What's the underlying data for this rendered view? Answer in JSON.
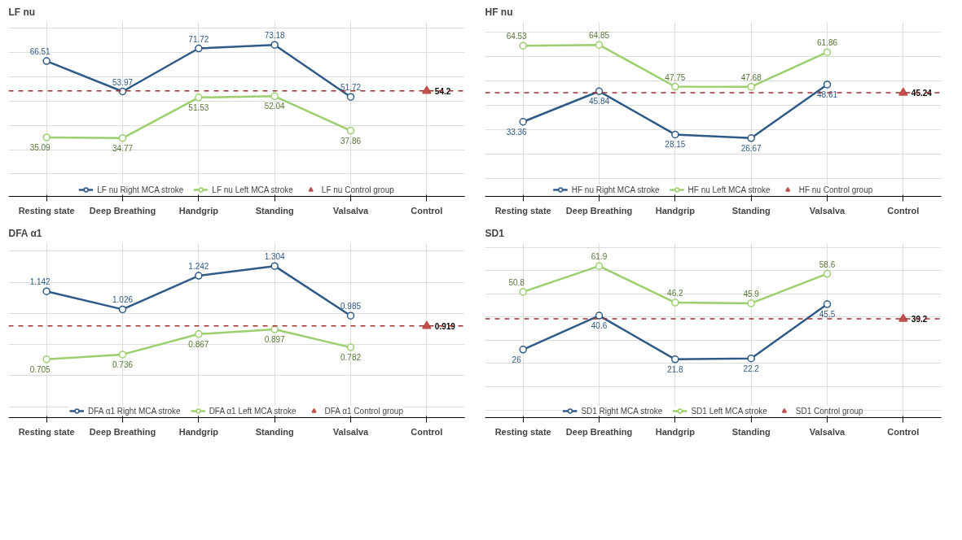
{
  "chart_data": [
    {
      "type": "line",
      "title": "LF nu",
      "categories": [
        "Resting state",
        "Deep Breathing",
        "Handgrip",
        "Standing",
        "Valsalva",
        "Control"
      ],
      "marker": "circle",
      "data_labels": true,
      "grid": true,
      "legend": "bottom",
      "tick_labels": "x",
      "series": [
        {
          "name": "LF nu Right MCA stroke",
          "color": "#2e5a87",
          "values": [
            66.51,
            53.97,
            71.72,
            73.18,
            51.72,
            null
          ]
        },
        {
          "name": "LF nu Left MCA stroke",
          "color": "#9bcf6e",
          "values": [
            35.09,
            34.77,
            51.53,
            52.04,
            37.86,
            null
          ]
        },
        {
          "name": "LF nu Control group",
          "color": "#c0504d",
          "type": "scatter",
          "marker": "triangle",
          "values": [
            null,
            null,
            null,
            null,
            null,
            54.2
          ]
        }
      ],
      "ref_lines": [
        {
          "axis": "y",
          "value": 54.2,
          "color": "#a0302d",
          "line_style": "dashed"
        }
      ]
    },
    {
      "type": "line",
      "title": "HF nu",
      "categories": [
        "Resting state",
        "Deep Breathing",
        "Handgrip",
        "Standing",
        "Valsalva",
        "Control"
      ],
      "marker": "circle",
      "data_labels": true,
      "grid": true,
      "legend": "bottom",
      "tick_labels": "x",
      "series": [
        {
          "name": "HF nu Right MCA stroke",
          "color": "#2e5a87",
          "values": [
            33.36,
            45.84,
            28.15,
            26.67,
            48.61,
            null
          ]
        },
        {
          "name": "HF nu Left MCA stroke",
          "color": "#9bcf6e",
          "values": [
            64.53,
            64.85,
            47.75,
            47.68,
            61.86,
            null
          ]
        },
        {
          "name": "HF nu Control group",
          "color": "#c0504d",
          "type": "scatter",
          "marker": "triangle",
          "values": [
            null,
            null,
            null,
            null,
            null,
            45.24
          ]
        }
      ],
      "ref_lines": [
        {
          "axis": "y",
          "value": 45.24,
          "color": "#a0302d",
          "line_style": "dashed"
        }
      ]
    },
    {
      "type": "line",
      "title": "DFA α1",
      "categories": [
        "Resting state",
        "Deep Breathing",
        "Handgrip",
        "Standing",
        "Valsalva",
        "Control"
      ],
      "marker": "circle",
      "data_labels": true,
      "grid": true,
      "legend": "bottom",
      "tick_labels": "x",
      "series": [
        {
          "name": "DFA α1 Right MCA stroke",
          "color": "#2e5a87",
          "values": [
            1.142,
            1.026,
            1.242,
            1.304,
            0.985,
            null
          ]
        },
        {
          "name": "DFA α1 Left MCA stroke",
          "color": "#9bcf6e",
          "values": [
            0.705,
            0.736,
            0.867,
            0.897,
            0.782,
            null
          ]
        },
        {
          "name": "DFA α1 Control group",
          "color": "#c0504d",
          "type": "scatter",
          "marker": "triangle",
          "values": [
            null,
            null,
            null,
            null,
            null,
            0.919
          ]
        }
      ],
      "ref_lines": [
        {
          "axis": "y",
          "value": 0.919,
          "color": "#a0302d",
          "line_style": "dashed"
        }
      ]
    },
    {
      "type": "line",
      "title": "SD1",
      "categories": [
        "Resting state",
        "Deep Breathing",
        "Handgrip",
        "Standing",
        "Valsalva",
        "Control"
      ],
      "marker": "circle",
      "data_labels": true,
      "grid": true,
      "legend": "bottom",
      "tick_labels": "x",
      "series": [
        {
          "name": "SD1 Right MCA stroke",
          "color": "#2e5a87",
          "values": [
            26,
            40.6,
            21.8,
            22.2,
            45.5,
            null
          ]
        },
        {
          "name": "SD1 Left MCA stroke",
          "color": "#9bcf6e",
          "values": [
            50.8,
            61.9,
            46.2,
            45.9,
            58.6,
            null
          ]
        },
        {
          "name": "SD1 Control group",
          "color": "#c0504d",
          "type": "scatter",
          "marker": "triangle",
          "values": [
            null,
            null,
            null,
            null,
            null,
            39.2
          ]
        }
      ],
      "ref_lines": [
        {
          "axis": "y",
          "value": 39.2,
          "color": "#a0302d",
          "line_style": "dashed"
        }
      ]
    }
  ]
}
